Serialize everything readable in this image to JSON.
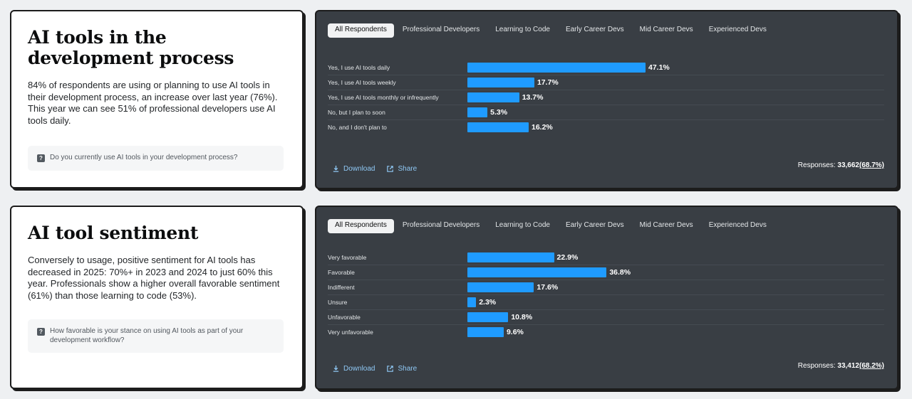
{
  "sections": [
    {
      "title": "AI tools in the development process",
      "description": "84% of respondents are using or planning to use AI tools in their development process, an increase over last year (76%). This year we can see 51% of professional developers use AI tools daily.",
      "question": "Do you currently use AI tools in your development process?"
    },
    {
      "title": "AI tool sentiment",
      "description": "Conversely to usage, positive sentiment for AI tools has decreased in 2025: 70%+ in 2023 and 2024 to just 60% this year. Professionals show a higher overall favorable sentiment (61%) than those learning to code (53%).",
      "question": "How favorable is your stance on using AI tools as part of your development workflow?"
    }
  ],
  "tabs": [
    "All Respondents",
    "Professional Developers",
    "Learning to Code",
    "Early Career Devs",
    "Mid Career Devs",
    "Experienced Devs"
  ],
  "actions": {
    "download": "Download",
    "share": "Share"
  },
  "responses_label": "Responses:",
  "colors": {
    "bar": "#1f9bff",
    "panel": "#393e44"
  },
  "chart_data": [
    {
      "type": "bar",
      "orientation": "horizontal",
      "categories": [
        "Yes, I use AI tools daily",
        "Yes, I use AI tools weekly",
        "Yes, I use AI tools monthly or infrequently",
        "No, but I plan to soon",
        "No, and I don't plan to"
      ],
      "values": [
        47.1,
        17.7,
        13.7,
        5.3,
        16.2
      ],
      "value_labels": [
        "47.1%",
        "17.7%",
        "13.7%",
        "5.3%",
        "16.2%"
      ],
      "unit": "%",
      "responses": "33,662",
      "responses_pct": "(68.7%)"
    },
    {
      "type": "bar",
      "orientation": "horizontal",
      "categories": [
        "Very favorable",
        "Favorable",
        "Indifferent",
        "Unsure",
        "Unfavorable",
        "Very unfavorable"
      ],
      "values": [
        22.9,
        36.8,
        17.6,
        2.3,
        10.8,
        9.6
      ],
      "value_labels": [
        "22.9%",
        "36.8%",
        "17.6%",
        "2.3%",
        "10.8%",
        "9.6%"
      ],
      "unit": "%",
      "responses": "33,412",
      "responses_pct": "(68.2%)"
    }
  ]
}
